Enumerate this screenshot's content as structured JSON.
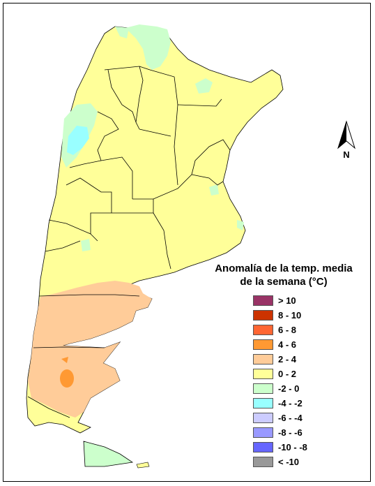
{
  "legend": {
    "title_line1": "Anomalía de la temp. media",
    "title_line2": "de la semana (°C)",
    "items": [
      {
        "label": "> 10",
        "color": "#993366"
      },
      {
        "label": "8 - 10",
        "color": "#cc3300"
      },
      {
        "label": "6 - 8",
        "color": "#ff6633"
      },
      {
        "label": "4 - 6",
        "color": "#ff9933"
      },
      {
        "label": "2 - 4",
        "color": "#ffcc99"
      },
      {
        "label": "0 - 2",
        "color": "#ffff99"
      },
      {
        "label": "-2 - 0",
        "color": "#ccffcc"
      },
      {
        "label": "-4 - -2",
        "color": "#99ffff"
      },
      {
        "label": "-6 - -4",
        "color": "#ccccff"
      },
      {
        "label": "-8 - -6",
        "color": "#9999ff"
      },
      {
        "label": "-10 - -8",
        "color": "#6666ff"
      },
      {
        "label": "< -10",
        "color": "#999999"
      }
    ]
  },
  "north_arrow": {
    "label": "N",
    "icon": "north-arrow-icon"
  },
  "map": {
    "fill_0_2": "#ffff99",
    "fill_2_4": "#ffcc99",
    "fill_4_6": "#ff9933",
    "fill_m2_0": "#ccffcc",
    "fill_m4_m2": "#99ffff"
  }
}
